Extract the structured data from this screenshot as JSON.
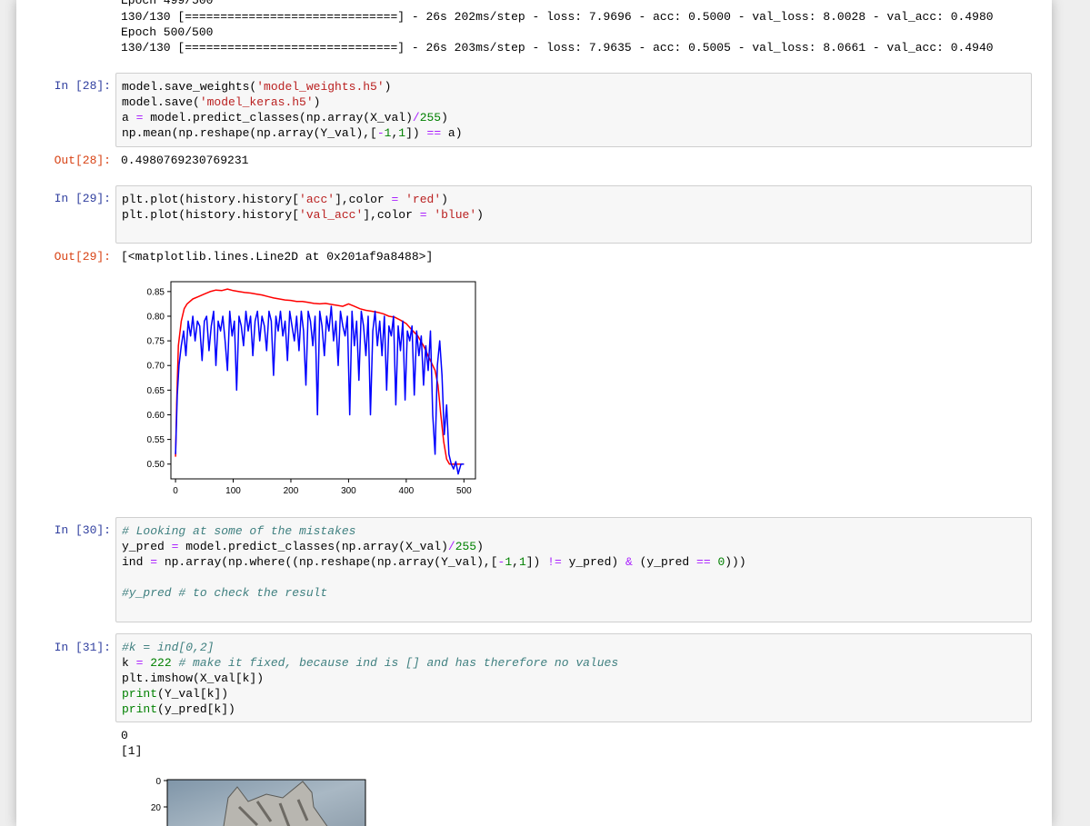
{
  "log": {
    "line1": "Epoch 499/500",
    "line2": "130/130 [==============================] - 26s 202ms/step - loss: 7.9696 - acc: 0.5000 - val_loss: 8.0028 - val_acc: 0.4980",
    "line3": "Epoch 500/500",
    "line4": "130/130 [==============================] - 26s 203ms/step - loss: 7.9635 - acc: 0.5005 - val_loss: 8.0661 - val_acc: 0.4940"
  },
  "cell28": {
    "prompt_in": "In [28]:",
    "prompt_out": "Out[28]:",
    "output": "0.4980769230769231"
  },
  "cell29": {
    "prompt_in": "In [29]:",
    "prompt_out": "Out[29]:",
    "output": "[<matplotlib.lines.Line2D at 0x201af9a8488>]"
  },
  "cell30": {
    "prompt_in": "In [30]:"
  },
  "cell31": {
    "prompt_in": "In [31]:",
    "stdout1": "0",
    "stdout2": "[1]"
  },
  "colors": {
    "in_prompt": "#303f9f",
    "out_prompt": "#d84315",
    "acc_line": "#ff0000",
    "val_acc_line": "#0000ff"
  },
  "chart_data": {
    "type": "line",
    "title": "",
    "xlabel": "",
    "ylabel": "",
    "xlim": [
      -8,
      520
    ],
    "ylim": [
      0.47,
      0.87
    ],
    "xticks": [
      0,
      100,
      200,
      300,
      400,
      500
    ],
    "yticks": [
      0.5,
      0.55,
      0.6,
      0.65,
      0.7,
      0.75,
      0.8,
      0.85
    ],
    "series": [
      {
        "color": "#ff0000",
        "x": [
          0,
          2,
          5,
          10,
          15,
          20,
          30,
          40,
          50,
          60,
          70,
          80,
          90,
          100,
          110,
          120,
          130,
          140,
          150,
          160,
          170,
          180,
          190,
          200,
          210,
          220,
          230,
          240,
          250,
          260,
          270,
          280,
          290,
          300,
          310,
          320,
          330,
          340,
          350,
          360,
          370,
          380,
          390,
          400,
          410,
          420,
          430,
          440,
          450,
          455,
          460,
          465,
          470,
          475,
          480,
          490,
          500
        ],
        "values": [
          0.515,
          0.62,
          0.74,
          0.79,
          0.815,
          0.825,
          0.835,
          0.84,
          0.845,
          0.85,
          0.853,
          0.852,
          0.855,
          0.852,
          0.85,
          0.848,
          0.847,
          0.845,
          0.843,
          0.84,
          0.837,
          0.835,
          0.833,
          0.832,
          0.83,
          0.83,
          0.828,
          0.826,
          0.825,
          0.826,
          0.824,
          0.822,
          0.82,
          0.825,
          0.82,
          0.815,
          0.812,
          0.81,
          0.808,
          0.805,
          0.8,
          0.798,
          0.792,
          0.785,
          0.772,
          0.76,
          0.74,
          0.715,
          0.69,
          0.66,
          0.6,
          0.545,
          0.51,
          0.5,
          0.5,
          0.5,
          0.5
        ]
      },
      {
        "color": "#0000ff",
        "x": [
          0,
          3,
          6,
          10,
          14,
          18,
          22,
          26,
          30,
          34,
          38,
          42,
          46,
          50,
          54,
          58,
          62,
          66,
          70,
          74,
          78,
          82,
          86,
          90,
          94,
          98,
          102,
          106,
          110,
          114,
          118,
          122,
          126,
          130,
          134,
          138,
          142,
          146,
          150,
          154,
          158,
          162,
          166,
          170,
          174,
          178,
          182,
          186,
          190,
          194,
          198,
          202,
          206,
          210,
          214,
          218,
          222,
          226,
          230,
          234,
          238,
          242,
          246,
          250,
          254,
          258,
          262,
          266,
          270,
          274,
          278,
          282,
          286,
          290,
          294,
          298,
          302,
          306,
          310,
          314,
          318,
          322,
          326,
          330,
          334,
          338,
          342,
          346,
          350,
          354,
          358,
          362,
          366,
          370,
          374,
          378,
          382,
          386,
          390,
          394,
          398,
          402,
          406,
          410,
          414,
          418,
          422,
          426,
          430,
          434,
          438,
          442,
          446,
          450,
          454,
          458,
          462,
          466,
          470,
          474,
          478,
          482,
          486,
          490,
          495,
          500
        ],
        "values": [
          0.52,
          0.64,
          0.7,
          0.74,
          0.77,
          0.72,
          0.79,
          0.76,
          0.8,
          0.75,
          0.79,
          0.78,
          0.71,
          0.79,
          0.8,
          0.73,
          0.78,
          0.81,
          0.7,
          0.79,
          0.77,
          0.8,
          0.75,
          0.69,
          0.81,
          0.76,
          0.79,
          0.65,
          0.8,
          0.78,
          0.74,
          0.81,
          0.77,
          0.8,
          0.72,
          0.79,
          0.81,
          0.75,
          0.8,
          0.78,
          0.73,
          0.81,
          0.79,
          0.68,
          0.8,
          0.77,
          0.81,
          0.76,
          0.79,
          0.71,
          0.81,
          0.78,
          0.75,
          0.8,
          0.73,
          0.81,
          0.77,
          0.66,
          0.81,
          0.79,
          0.74,
          0.8,
          0.6,
          0.81,
          0.78,
          0.72,
          0.8,
          0.77,
          0.82,
          0.75,
          0.79,
          0.7,
          0.81,
          0.78,
          0.76,
          0.8,
          0.6,
          0.81,
          0.74,
          0.79,
          0.67,
          0.81,
          0.78,
          0.72,
          0.8,
          0.6,
          0.77,
          0.81,
          0.74,
          0.79,
          0.72,
          0.8,
          0.65,
          0.78,
          0.76,
          0.8,
          0.62,
          0.78,
          0.73,
          0.79,
          0.63,
          0.77,
          0.75,
          0.78,
          0.64,
          0.77,
          0.72,
          0.76,
          0.66,
          0.74,
          0.69,
          0.77,
          0.6,
          0.52,
          0.7,
          0.75,
          0.68,
          0.56,
          0.62,
          0.52,
          0.5,
          0.49,
          0.505,
          0.48,
          0.5,
          0.5
        ]
      }
    ]
  },
  "image_plot": {
    "yticks": [
      "0",
      "20"
    ]
  }
}
